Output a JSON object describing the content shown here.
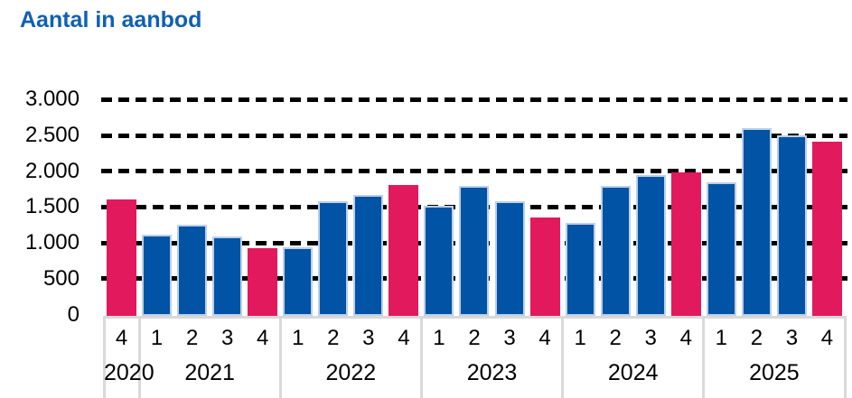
{
  "page": {
    "background_color": "#ffffff",
    "title_color": "#1060b2",
    "axis_table_color": "#d9d9d9",
    "gridline_color": "#000000"
  },
  "chart_data": {
    "type": "bar",
    "title": "Aantal in aanbod",
    "xlabel": "",
    "ylabel": "",
    "legend": "none",
    "grid": "horizontal-dashed",
    "ylim": [
      0,
      3000
    ],
    "yticks": {
      "values": [
        0,
        500,
        1000,
        1500,
        2000,
        2500,
        3000
      ],
      "labels": [
        "0",
        "500",
        "1.000",
        "1.500",
        "2.000",
        "2.500",
        "3.000"
      ]
    },
    "bar_color_default": "#0153a5",
    "bar_color_q4_highlight": "#e3195d",
    "bar_border_color": "#bcd0e8",
    "quarters": [
      "4",
      "1",
      "2",
      "3",
      "4",
      "1",
      "2",
      "3",
      "4",
      "1",
      "2",
      "3",
      "4",
      "1",
      "2",
      "3",
      "4",
      "1",
      "2",
      "3",
      "4"
    ],
    "values": [
      1600,
      1110,
      1250,
      1090,
      930,
      940,
      1580,
      1670,
      1810,
      1520,
      1800,
      1580,
      1350,
      1280,
      1800,
      1950,
      1980,
      1850,
      2600,
      2500,
      2410
    ],
    "year_groups": [
      {
        "label": "2020",
        "span": 1
      },
      {
        "label": "2021",
        "span": 4
      },
      {
        "label": "2022",
        "span": 4
      },
      {
        "label": "2023",
        "span": 4
      },
      {
        "label": "2024",
        "span": 4
      },
      {
        "label": "2025",
        "span": 4
      }
    ]
  }
}
